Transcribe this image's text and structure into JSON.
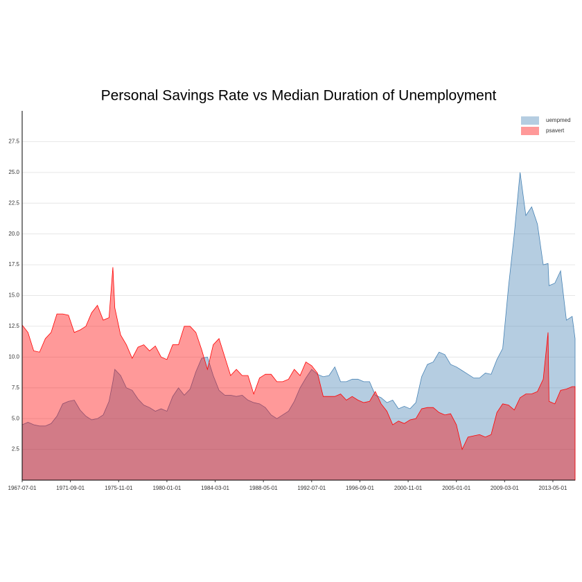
{
  "chart_data": {
    "type": "area",
    "title": "Personal Savings Rate vs Median Duration of Unemployment",
    "x": [
      "1967-07-01",
      "1968-01-01",
      "1968-07-01",
      "1969-01-01",
      "1969-07-01",
      "1970-01-01",
      "1970-07-01",
      "1971-01-01",
      "1971-07-01",
      "1972-01-01",
      "1972-07-01",
      "1973-01-01",
      "1973-07-01",
      "1974-01-01",
      "1974-07-01",
      "1975-01-01",
      "1975-05-01",
      "1975-07-01",
      "1976-01-01",
      "1976-07-01",
      "1977-01-01",
      "1977-07-01",
      "1978-01-01",
      "1978-07-01",
      "1979-01-01",
      "1979-07-01",
      "1980-01-01",
      "1980-07-01",
      "1981-01-01",
      "1981-07-01",
      "1982-01-01",
      "1982-07-01",
      "1983-01-01",
      "1983-07-01",
      "1984-01-01",
      "1984-07-01",
      "1985-01-01",
      "1985-07-01",
      "1986-01-01",
      "1986-07-01",
      "1987-01-01",
      "1987-07-01",
      "1988-01-01",
      "1988-07-01",
      "1989-01-01",
      "1989-07-01",
      "1990-01-01",
      "1990-07-01",
      "1991-01-01",
      "1991-07-01",
      "1992-01-01",
      "1992-07-01",
      "1993-01-01",
      "1993-07-01",
      "1994-01-01",
      "1994-07-01",
      "1995-01-01",
      "1995-07-01",
      "1996-01-01",
      "1996-07-01",
      "1997-01-01",
      "1997-07-01",
      "1998-01-01",
      "1998-07-01",
      "1999-01-01",
      "1999-07-01",
      "2000-01-01",
      "2000-07-01",
      "2001-01-01",
      "2001-07-01",
      "2002-01-01",
      "2002-07-01",
      "2003-01-01",
      "2003-07-01",
      "2004-01-01",
      "2004-07-01",
      "2005-01-01",
      "2005-07-01",
      "2006-01-01",
      "2006-07-01",
      "2007-01-01",
      "2007-07-01",
      "2008-01-01",
      "2008-07-01",
      "2009-01-01",
      "2009-07-01",
      "2010-01-01",
      "2010-07-01",
      "2011-01-01",
      "2011-07-01",
      "2012-01-01",
      "2012-07-01",
      "2012-12-01",
      "2013-01-01",
      "2013-07-01",
      "2014-01-01",
      "2014-07-01",
      "2015-01-01",
      "2015-04-01"
    ],
    "series": [
      {
        "name": "uempmed",
        "color": "#4682b4",
        "values": [
          4.5,
          4.7,
          4.5,
          4.4,
          4.4,
          4.6,
          5.2,
          6.2,
          6.4,
          6.5,
          5.7,
          5.2,
          4.9,
          5.0,
          5.3,
          6.4,
          8.0,
          9.0,
          8.5,
          7.5,
          7.3,
          6.6,
          6.1,
          5.9,
          5.6,
          5.8,
          5.6,
          6.8,
          7.5,
          6.9,
          7.4,
          8.8,
          9.9,
          10.0,
          8.5,
          7.3,
          6.9,
          6.9,
          6.8,
          6.9,
          6.5,
          6.3,
          6.2,
          5.9,
          5.3,
          5.0,
          5.3,
          5.6,
          6.4,
          7.5,
          8.3,
          9.0,
          8.6,
          8.4,
          8.5,
          9.2,
          8.0,
          8.0,
          8.2,
          8.2,
          8.0,
          8.0,
          6.9,
          6.7,
          6.3,
          6.5,
          5.8,
          6.0,
          5.8,
          6.3,
          8.4,
          9.4,
          9.6,
          10.4,
          10.2,
          9.4,
          9.2,
          8.9,
          8.6,
          8.3,
          8.3,
          8.7,
          8.6,
          9.8,
          10.7,
          15.7,
          20.0,
          25.0,
          21.5,
          22.2,
          20.8,
          17.5,
          17.6,
          15.8,
          16.0,
          17.0,
          13.0,
          13.3,
          11.5
        ]
      },
      {
        "name": "psavert",
        "color": "#ff0000",
        "values": [
          12.6,
          12.0,
          10.5,
          10.4,
          11.5,
          12.0,
          13.5,
          13.5,
          13.4,
          12.0,
          12.2,
          12.5,
          13.6,
          14.2,
          13.0,
          13.2,
          17.3,
          14.0,
          11.8,
          11.0,
          9.9,
          10.8,
          11.0,
          10.5,
          10.9,
          10.0,
          9.8,
          11.0,
          11.0,
          12.5,
          12.5,
          12.0,
          10.6,
          9.0,
          11.0,
          11.5,
          10.0,
          8.5,
          9.0,
          8.5,
          8.5,
          7.0,
          8.3,
          8.6,
          8.6,
          8.0,
          8.0,
          8.2,
          9.0,
          8.5,
          9.6,
          9.3,
          8.7,
          6.8,
          6.8,
          6.8,
          7.0,
          6.5,
          6.8,
          6.5,
          6.3,
          6.4,
          7.2,
          6.2,
          5.6,
          4.5,
          4.8,
          4.6,
          4.9,
          5.0,
          5.8,
          5.9,
          5.9,
          5.5,
          5.3,
          5.4,
          4.5,
          2.5,
          3.5,
          3.6,
          3.7,
          3.5,
          3.7,
          5.5,
          6.2,
          6.1,
          5.7,
          6.7,
          7.0,
          7.0,
          7.2,
          8.2,
          12.0,
          6.4,
          6.2,
          7.3,
          7.4,
          7.6,
          7.6
        ]
      }
    ],
    "xlim": [
      "1967-07-01",
      "2015-04-01"
    ],
    "xticks": [
      "1967-07-01",
      "1971-09-01",
      "1975-11-01",
      "1980-01-01",
      "1984-03-01",
      "1988-05-01",
      "1992-07-01",
      "1996-09-01",
      "2000-11-01",
      "2005-01-01",
      "2009-03-01",
      "2013-05-01"
    ],
    "ylim": [
      0,
      30
    ],
    "yticks": [
      2.5,
      {
        "value": 5,
        "label": "5.0"
      },
      7.5,
      {
        "value": 10,
        "label": "10.0"
      },
      12.5,
      {
        "value": 15,
        "label": "15.0"
      },
      17.5,
      {
        "value": 20,
        "label": "20.0"
      },
      22.5,
      {
        "value": 25,
        "label": "25.0"
      },
      27.5
    ],
    "grid": true,
    "legend": "topright"
  }
}
